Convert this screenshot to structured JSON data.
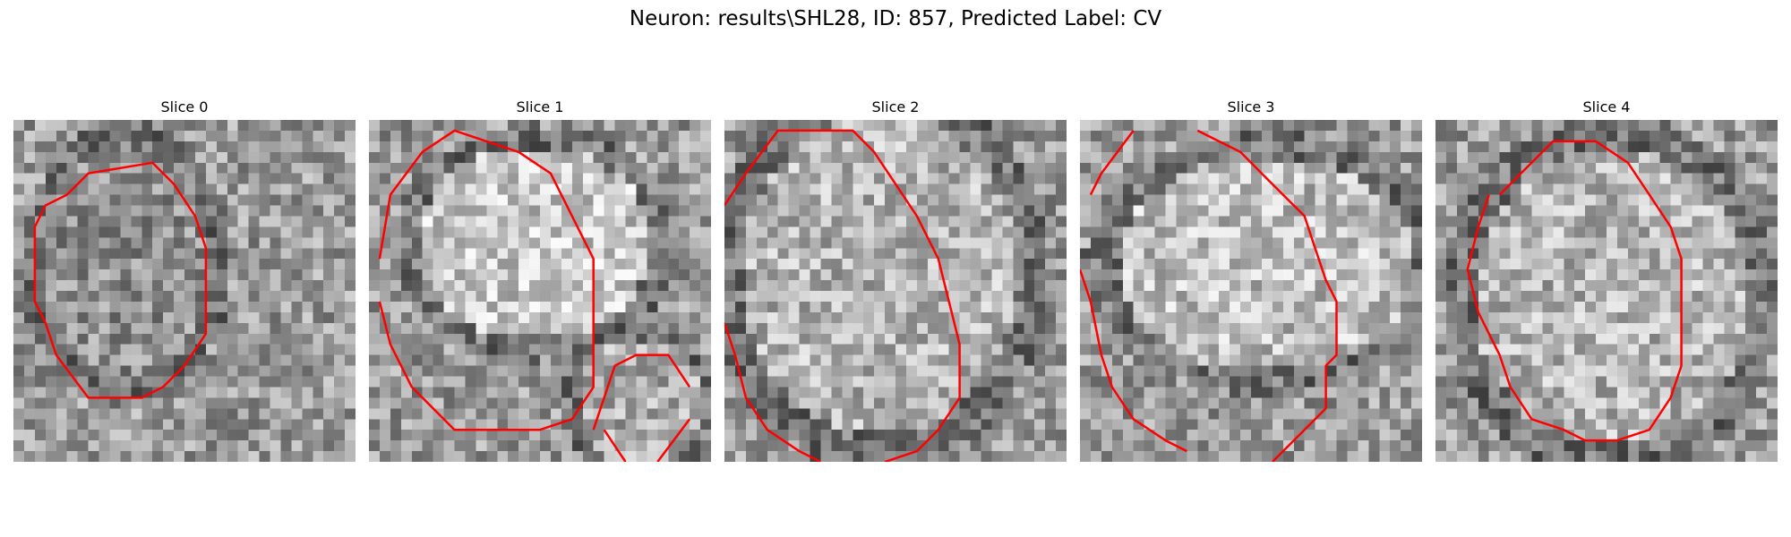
{
  "figure": {
    "title": "Neuron: results\\SHL28, ID: 857, Predicted Label: CV"
  },
  "panels": [
    {
      "title": "Slice 0",
      "contour_color": "#ff0000"
    },
    {
      "title": "Slice 1",
      "contour_color": "#ff0000"
    },
    {
      "title": "Slice 2",
      "contour_color": "#ff0000"
    },
    {
      "title": "Slice 3",
      "contour_color": "#ff0000"
    },
    {
      "title": "Slice 4",
      "contour_color": "#ff0000"
    }
  ]
}
